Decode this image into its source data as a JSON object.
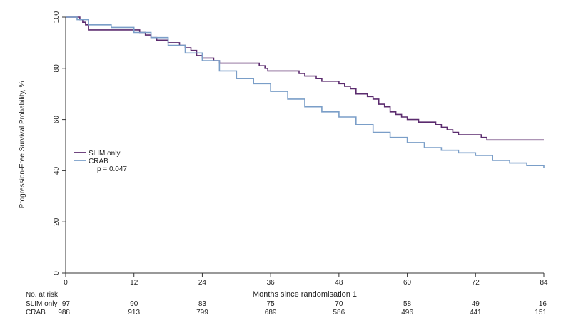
{
  "chart_data": {
    "type": "line",
    "step": true,
    "xlabel": "Months since randomisation 1",
    "ylabel": "Progression-Free Survival Probability, %",
    "xlim": [
      0,
      84
    ],
    "ylim": [
      0,
      100
    ],
    "xticks": [
      0,
      12,
      24,
      36,
      48,
      60,
      72,
      84
    ],
    "yticks": [
      0,
      20,
      40,
      60,
      80,
      100
    ],
    "legend_position": "left",
    "legend_pvalue": "p =  0.047",
    "series": [
      {
        "name": "SLIM only",
        "color": "#5b2b6e",
        "points": [
          [
            0,
            100
          ],
          [
            2,
            100
          ],
          [
            2.5,
            99
          ],
          [
            3,
            98
          ],
          [
            3.5,
            97
          ],
          [
            4,
            95
          ],
          [
            12,
            95
          ],
          [
            13,
            94
          ],
          [
            14,
            93
          ],
          [
            15,
            92
          ],
          [
            16,
            91
          ],
          [
            18,
            90
          ],
          [
            20,
            89
          ],
          [
            21,
            88
          ],
          [
            22,
            87
          ],
          [
            23,
            85
          ],
          [
            24,
            84
          ],
          [
            26,
            83
          ],
          [
            27,
            82
          ],
          [
            33,
            82
          ],
          [
            34,
            81
          ],
          [
            35,
            80
          ],
          [
            35.5,
            79
          ],
          [
            40,
            79
          ],
          [
            41,
            78
          ],
          [
            42,
            77
          ],
          [
            44,
            76
          ],
          [
            45,
            75
          ],
          [
            48,
            74
          ],
          [
            49,
            73
          ],
          [
            50,
            72
          ],
          [
            51,
            70
          ],
          [
            53,
            69
          ],
          [
            54,
            68
          ],
          [
            55,
            66
          ],
          [
            56,
            65
          ],
          [
            57,
            63
          ],
          [
            58,
            62
          ],
          [
            59,
            61
          ],
          [
            60,
            60
          ],
          [
            62,
            59
          ],
          [
            64,
            59
          ],
          [
            65,
            58
          ],
          [
            66,
            57
          ],
          [
            67,
            56
          ],
          [
            68,
            55
          ],
          [
            69,
            54
          ],
          [
            72,
            54
          ],
          [
            73,
            53
          ],
          [
            74,
            52
          ],
          [
            84,
            52
          ]
        ]
      },
      {
        "name": "CRAB",
        "color": "#7a9ec8",
        "points": [
          [
            0,
            100
          ],
          [
            2,
            99
          ],
          [
            4,
            97
          ],
          [
            8,
            96
          ],
          [
            12,
            94
          ],
          [
            15,
            92
          ],
          [
            18,
            89
          ],
          [
            21,
            86
          ],
          [
            24,
            83
          ],
          [
            27,
            79
          ],
          [
            30,
            76
          ],
          [
            33,
            74
          ],
          [
            36,
            71
          ],
          [
            39,
            68
          ],
          [
            42,
            65
          ],
          [
            45,
            63
          ],
          [
            48,
            61
          ],
          [
            51,
            58
          ],
          [
            54,
            55
          ],
          [
            57,
            53
          ],
          [
            60,
            51
          ],
          [
            63,
            49
          ],
          [
            66,
            48
          ],
          [
            69,
            47
          ],
          [
            72,
            46
          ],
          [
            75,
            44
          ],
          [
            78,
            43
          ],
          [
            81,
            42
          ],
          [
            84,
            41
          ]
        ]
      }
    ],
    "risk_table": {
      "title": "No. at risk",
      "rows": [
        {
          "label": "SLIM only",
          "values": [
            97,
            90,
            83,
            75,
            70,
            58,
            49,
            16
          ]
        },
        {
          "label": "CRAB",
          "values": [
            988,
            913,
            799,
            689,
            586,
            496,
            441,
            151
          ]
        }
      ]
    }
  }
}
